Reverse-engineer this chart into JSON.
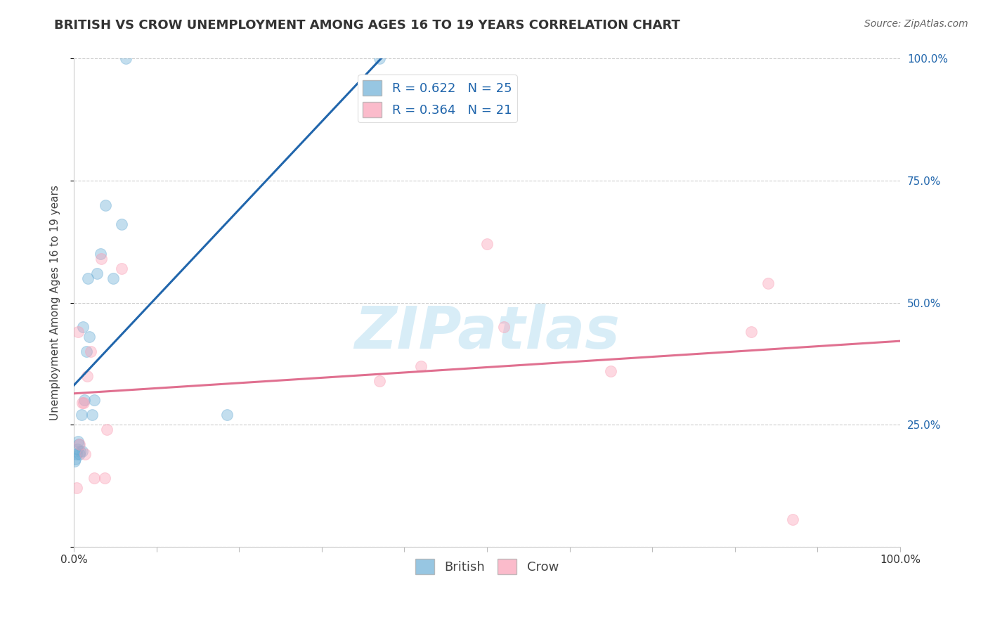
{
  "title": "BRITISH VS CROW UNEMPLOYMENT AMONG AGES 16 TO 19 YEARS CORRELATION CHART",
  "source": "Source: ZipAtlas.com",
  "ylabel": "Unemployment Among Ages 16 to 19 years",
  "xlim": [
    0.0,
    1.0
  ],
  "ylim": [
    0.0,
    1.0
  ],
  "british_color": "#6baed6",
  "crow_color": "#fa9fb5",
  "british_line_color": "#2166ac",
  "crow_line_color": "#e07090",
  "legend_text_color": "#2166ac",
  "watermark_color": "#c8e6f5",
  "british_R": 0.622,
  "british_N": 25,
  "crow_R": 0.364,
  "crow_N": 21,
  "british_x": [
    0.001,
    0.002,
    0.003,
    0.004,
    0.005,
    0.006,
    0.007,
    0.008,
    0.009,
    0.01,
    0.011,
    0.013,
    0.015,
    0.017,
    0.019,
    0.022,
    0.025,
    0.028,
    0.032,
    0.038,
    0.048,
    0.058,
    0.063,
    0.185,
    0.37
  ],
  "british_y": [
    0.175,
    0.18,
    0.19,
    0.2,
    0.215,
    0.21,
    0.19,
    0.195,
    0.27,
    0.195,
    0.45,
    0.3,
    0.4,
    0.55,
    0.43,
    0.27,
    0.3,
    0.56,
    0.6,
    0.7,
    0.55,
    0.66,
    1.0,
    0.27,
    1.0
  ],
  "crow_x": [
    0.003,
    0.005,
    0.007,
    0.01,
    0.012,
    0.014,
    0.016,
    0.02,
    0.025,
    0.033,
    0.037,
    0.04,
    0.058,
    0.37,
    0.42,
    0.5,
    0.52,
    0.65,
    0.82,
    0.84,
    0.87
  ],
  "crow_y": [
    0.12,
    0.44,
    0.21,
    0.295,
    0.295,
    0.19,
    0.35,
    0.4,
    0.14,
    0.59,
    0.14,
    0.24,
    0.57,
    0.34,
    0.37,
    0.62,
    0.45,
    0.36,
    0.44,
    0.54,
    0.055
  ],
  "title_fontsize": 13,
  "axis_label_fontsize": 11,
  "tick_fontsize": 11,
  "legend_fontsize": 13,
  "source_fontsize": 10,
  "marker_size": 130,
  "marker_alpha": 0.4,
  "line_width": 2.2
}
